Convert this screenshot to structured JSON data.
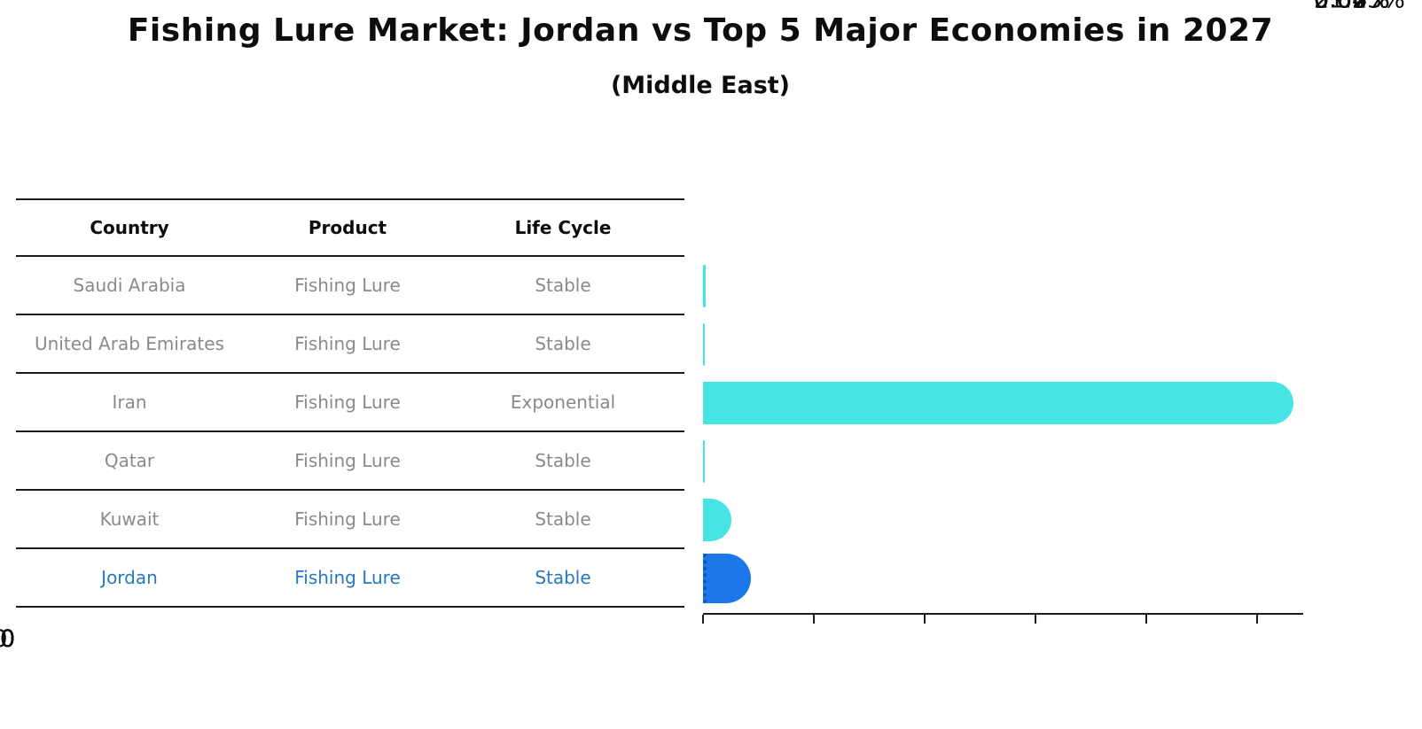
{
  "header": {
    "title": "Fishing Lure Market: Jordan vs Top 5 Major Economies in 2027",
    "subtitle": "(Middle East)"
  },
  "table": {
    "headers": {
      "country": "Country",
      "product": "Product",
      "life_cycle": "Life Cycle"
    },
    "rows": [
      {
        "country": "Saudi Arabia",
        "product": "Fishing Lure",
        "life_cycle": "Stable",
        "highlighted": false
      },
      {
        "country": "United Arab Emirates",
        "product": "Fishing Lure",
        "life_cycle": "Stable",
        "highlighted": false
      },
      {
        "country": "Iran",
        "product": "Fishing Lure",
        "life_cycle": "Exponential",
        "highlighted": false
      },
      {
        "country": "Qatar",
        "product": "Fishing Lure",
        "life_cycle": "Stable",
        "highlighted": false
      },
      {
        "country": "Kuwait",
        "product": "Fishing Lure",
        "life_cycle": "Stable",
        "highlighted": false
      },
      {
        "country": "Jordan",
        "product": "Fishing Lure",
        "life_cycle": "Stable",
        "highlighted": true
      }
    ],
    "highlight_text_color": "#2878BE"
  },
  "chart_data": {
    "type": "bar",
    "orientation": "horizontal",
    "title": "Fishing Lure Market: Jordan vs Top 5 Major Economies in 2027",
    "subtitle": "(Middle East)",
    "categories": [
      "Saudi Arabia",
      "United Arab Emirates",
      "Iran",
      "Qatar",
      "Kuwait",
      "Jordan"
    ],
    "values": [
      0.07,
      0.04,
      51.33,
      0.02,
      0.66,
      2.04
    ],
    "value_labels": [
      "0.07%",
      "0.04%",
      "51.33%",
      "0.02%",
      "0.66%",
      "2.04%"
    ],
    "x_ticks": [
      "0",
      "10",
      "20",
      "30",
      "40",
      "50"
    ],
    "xlim": [
      0,
      54
    ],
    "grid": false,
    "legend": null,
    "bar_color": "#47E4E4",
    "highlight_bar_color": "#1C78E8",
    "highlight_index": 5,
    "axis_color": "#1c1c1c"
  }
}
